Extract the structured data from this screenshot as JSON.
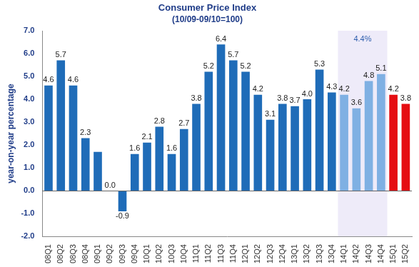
{
  "chart_data": {
    "type": "bar",
    "title": "Consumer Price Index",
    "subtitle": "(10/09-09/10=100)",
    "y_label": "year-on-year percentage",
    "categories": [
      "08Q1",
      "08Q2",
      "08Q3",
      "08Q4",
      "09Q1",
      "09Q2",
      "09Q3",
      "09Q4",
      "10Q1",
      "10Q2",
      "10Q3",
      "10Q4",
      "11Q1",
      "11Q2",
      "11Q3",
      "11Q4",
      "12Q1",
      "12Q2",
      "12Q3",
      "12Q4",
      "13Q1",
      "13Q2",
      "13Q3",
      "13Q4",
      "14Q1",
      "14Q2",
      "14Q3",
      "14Q4",
      "15Q1",
      "15Q2"
    ],
    "values": [
      4.6,
      5.7,
      4.6,
      2.3,
      1.7,
      0.0,
      -0.9,
      1.6,
      2.1,
      2.8,
      1.6,
      2.7,
      3.8,
      5.2,
      6.4,
      5.7,
      5.2,
      4.2,
      3.1,
      3.8,
      3.7,
      4.0,
      5.3,
      4.3,
      4.2,
      3.6,
      4.8,
      5.1,
      4.2,
      3.8
    ],
    "value_labels": [
      "4.6",
      "5.7",
      "4.6",
      "2.3",
      null,
      "0.0",
      "-0.9",
      "1.6",
      "2.1",
      "2.8",
      "1.6",
      "2.7",
      "3.8",
      "5.2",
      "6.4",
      "5.7",
      "5.2",
      "4.2",
      "3.1",
      "3.8",
      "3.7",
      "4.0",
      "5.3",
      "4.3",
      "4.2",
      "3.6",
      "4.8",
      "5.1",
      "4.2",
      "3.8"
    ],
    "colors": [
      "#1f6cb8",
      "#1f6cb8",
      "#1f6cb8",
      "#1f6cb8",
      "#1f6cb8",
      "#1f6cb8",
      "#1f6cb8",
      "#1f6cb8",
      "#1f6cb8",
      "#1f6cb8",
      "#1f6cb8",
      "#1f6cb8",
      "#1f6cb8",
      "#1f6cb8",
      "#1f6cb8",
      "#1f6cb8",
      "#1f6cb8",
      "#1f6cb8",
      "#1f6cb8",
      "#1f6cb8",
      "#1f6cb8",
      "#1f6cb8",
      "#1f6cb8",
      "#1f6cb8",
      "#7fb0e3",
      "#7fb0e3",
      "#7fb0e3",
      "#7fb0e3",
      "#e50d12",
      "#e50d12"
    ],
    "ylim": [
      -2,
      7
    ],
    "yticks": [
      {
        "value": -2,
        "label": "-2.0"
      },
      {
        "value": -1,
        "label": "-1.0"
      },
      {
        "value": 0,
        "label": "0.0"
      },
      {
        "value": 1,
        "label": "1.0"
      },
      {
        "value": 2,
        "label": "2.0"
      },
      {
        "value": 3,
        "label": "3.0"
      },
      {
        "value": 4,
        "label": "4.0"
      },
      {
        "value": 5,
        "label": "5.0"
      },
      {
        "value": 6,
        "label": "6.0"
      },
      {
        "value": 7,
        "label": "7.0"
      }
    ],
    "grid": false,
    "data_labels": true,
    "annotations": [
      {
        "text": "4.4%",
        "from": "14Q1",
        "to": "14Q4"
      }
    ]
  }
}
